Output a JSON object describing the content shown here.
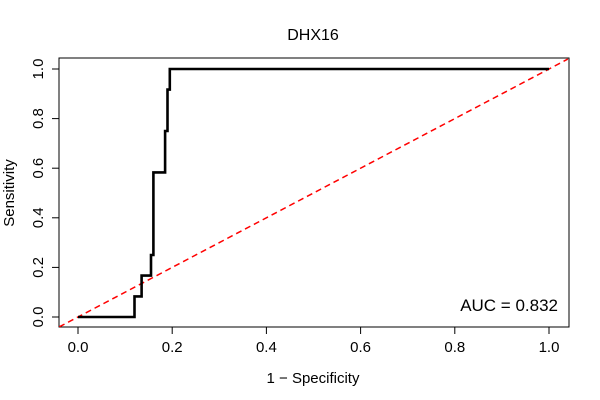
{
  "chart_data": {
    "type": "line",
    "title": "DHX16",
    "xlabel": "1 − Specificity",
    "ylabel": "Sensitivity",
    "xlim": [
      0,
      1
    ],
    "ylim": [
      0,
      1
    ],
    "x_ticks": [
      "0.0",
      "0.2",
      "0.4",
      "0.6",
      "0.8",
      "1.0"
    ],
    "y_ticks": [
      "0.0",
      "0.2",
      "0.4",
      "0.6",
      "0.8",
      "1.0"
    ],
    "grid": false,
    "annotation": "AUC = 0.832",
    "series": [
      {
        "color": "#000000",
        "style": "solid",
        "x": [
          0.0,
          0.12,
          0.12,
          0.135,
          0.135,
          0.155,
          0.155,
          0.16,
          0.16,
          0.165,
          0.165,
          0.185,
          0.185,
          0.19,
          0.19,
          0.195,
          0.195,
          1.0
        ],
        "y": [
          0.0,
          0.0,
          0.083,
          0.083,
          0.167,
          0.167,
          0.25,
          0.25,
          0.583,
          0.583,
          0.583,
          0.583,
          0.75,
          0.75,
          0.917,
          0.917,
          1.0,
          1.0
        ]
      },
      {
        "color": "#ff0000",
        "style": "dashed",
        "x": [
          0.0,
          1.0
        ],
        "y": [
          0.0,
          1.0
        ]
      }
    ]
  }
}
